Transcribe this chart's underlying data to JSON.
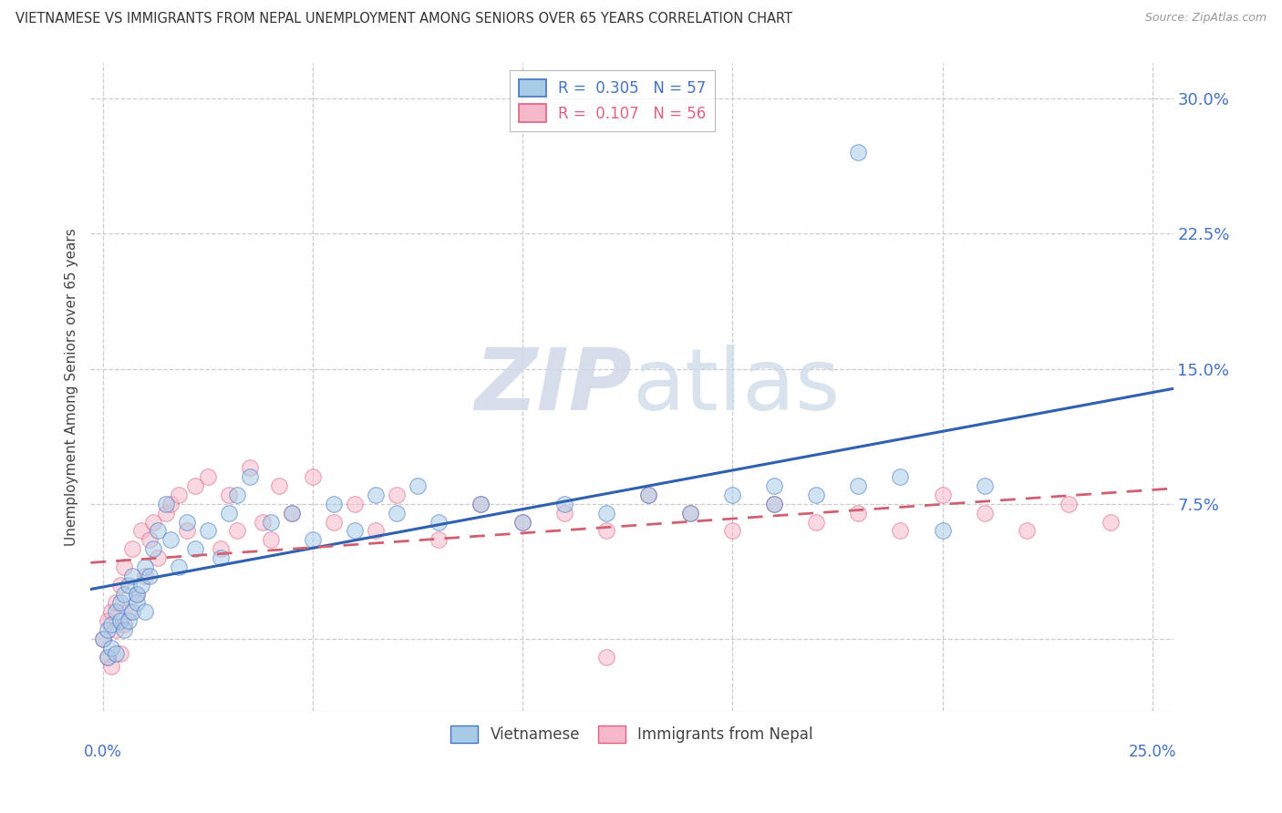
{
  "title": "VIETNAMESE VS IMMIGRANTS FROM NEPAL UNEMPLOYMENT AMONG SENIORS OVER 65 YEARS CORRELATION CHART",
  "source": "Source: ZipAtlas.com",
  "ylabel": "Unemployment Among Seniors over 65 years",
  "xlim": [
    -0.003,
    0.255
  ],
  "ylim": [
    -0.04,
    0.32
  ],
  "yticks": [
    0.0,
    0.075,
    0.15,
    0.225,
    0.3
  ],
  "ytick_labels": [
    "",
    "7.5%",
    "15.0%",
    "22.5%",
    "30.0%"
  ],
  "color_blue": "#a8cce8",
  "color_pink": "#f5b8ca",
  "edge_blue": "#4472c4",
  "edge_pink": "#e06080",
  "line_blue": "#3060b0",
  "line_pink": "#d06070",
  "background": "#ffffff",
  "seed": 12345,
  "n_viet": 57,
  "n_nepal": 56
}
